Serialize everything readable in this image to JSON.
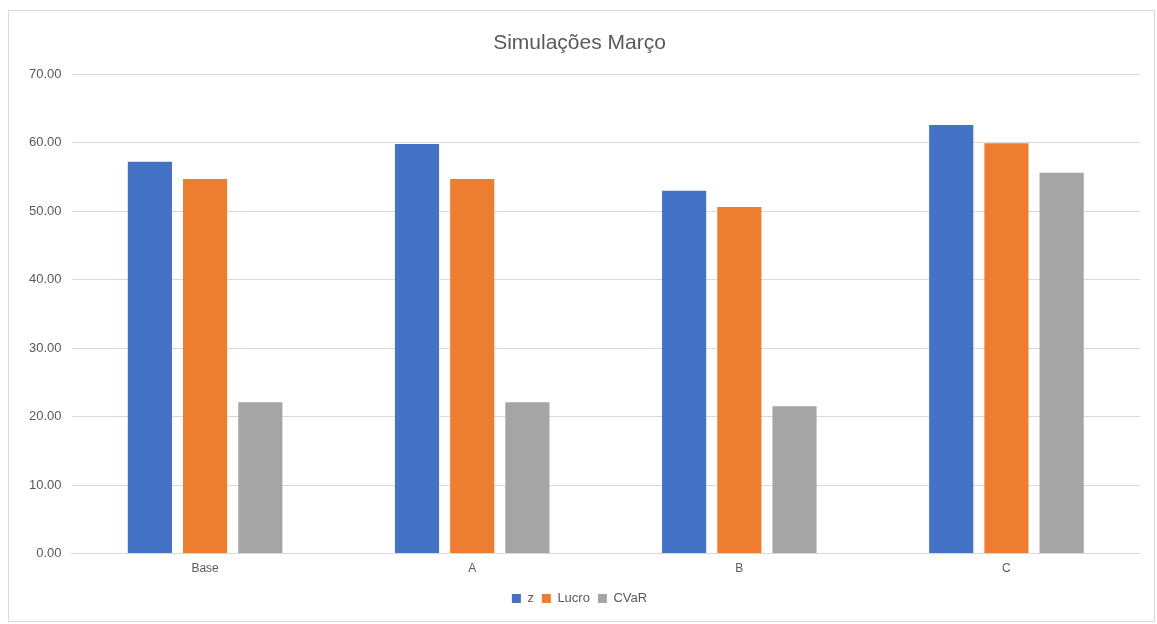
{
  "chart_data": {
    "type": "bar",
    "title": "Simulações Março",
    "categories": [
      "Base",
      "A",
      "B",
      "C"
    ],
    "series": [
      {
        "name": "z",
        "color": "#4472c4",
        "values": [
          57.2,
          59.8,
          53.0,
          62.6
        ]
      },
      {
        "name": "Lucro",
        "color": "#ed7d31",
        "values": [
          54.7,
          54.7,
          50.6,
          59.9
        ]
      },
      {
        "name": "CVaR",
        "color": "#a5a5a5",
        "values": [
          22.1,
          22.1,
          21.5,
          55.6
        ]
      }
    ],
    "ylim": [
      0,
      70
    ],
    "yticks": [
      {
        "value": 0,
        "label": "0.00"
      },
      {
        "value": 10,
        "label": "10.00"
      },
      {
        "value": 20,
        "label": "20.00"
      },
      {
        "value": 30,
        "label": "30.00"
      },
      {
        "value": 40,
        "label": "40.00"
      },
      {
        "value": 50,
        "label": "50.00"
      },
      {
        "value": 60,
        "label": "60.00"
      },
      {
        "value": 70,
        "label": "70.00"
      }
    ],
    "grid": "y",
    "legend": "bottom"
  }
}
